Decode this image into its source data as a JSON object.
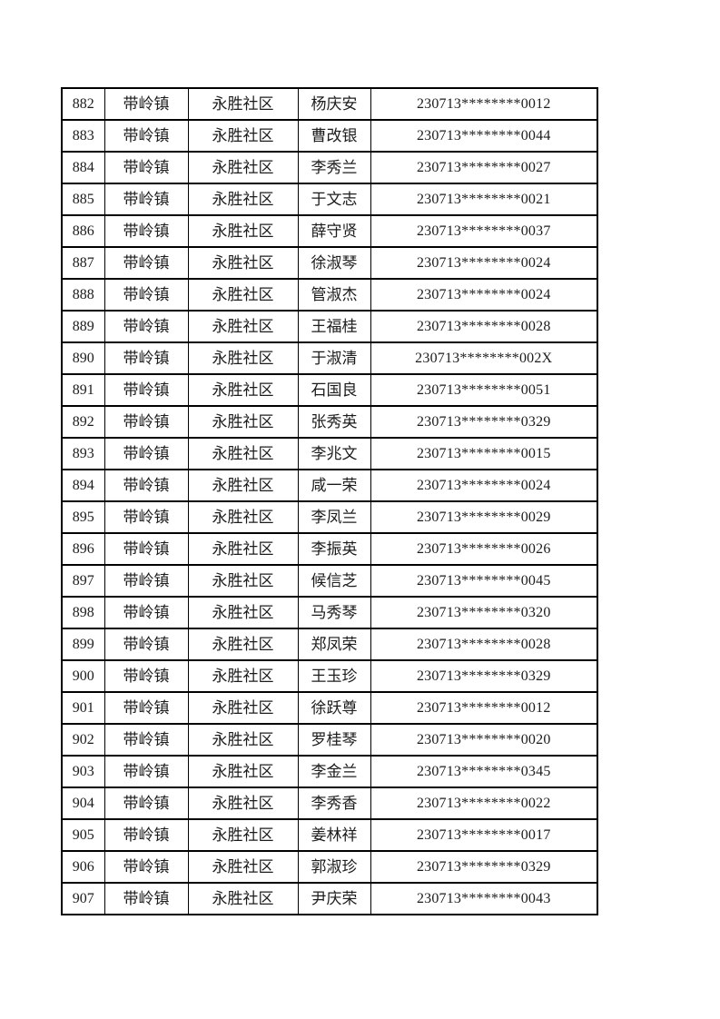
{
  "page": {
    "background_color": "#ffffff",
    "text_color": "#1c1c1c",
    "border_color": "#000000"
  },
  "table": {
    "fields": [
      "no",
      "town",
      "community",
      "name",
      "id_masked"
    ],
    "rows": [
      {
        "no": "882",
        "town": "带岭镇",
        "community": "永胜社区",
        "name": "杨庆安",
        "id_masked": "230713********0012"
      },
      {
        "no": "883",
        "town": "带岭镇",
        "community": "永胜社区",
        "name": "曹改银",
        "id_masked": "230713********0044"
      },
      {
        "no": "884",
        "town": "带岭镇",
        "community": "永胜社区",
        "name": "李秀兰",
        "id_masked": "230713********0027"
      },
      {
        "no": "885",
        "town": "带岭镇",
        "community": "永胜社区",
        "name": "于文志",
        "id_masked": "230713********0021"
      },
      {
        "no": "886",
        "town": "带岭镇",
        "community": "永胜社区",
        "name": "薛守贤",
        "id_masked": "230713********0037"
      },
      {
        "no": "887",
        "town": "带岭镇",
        "community": "永胜社区",
        "name": "徐淑琴",
        "id_masked": "230713********0024"
      },
      {
        "no": "888",
        "town": "带岭镇",
        "community": "永胜社区",
        "name": "管淑杰",
        "id_masked": "230713********0024"
      },
      {
        "no": "889",
        "town": "带岭镇",
        "community": "永胜社区",
        "name": "王福桂",
        "id_masked": "230713********0028"
      },
      {
        "no": "890",
        "town": "带岭镇",
        "community": "永胜社区",
        "name": "于淑清",
        "id_masked": "230713********002X"
      },
      {
        "no": "891",
        "town": "带岭镇",
        "community": "永胜社区",
        "name": "石国良",
        "id_masked": "230713********0051"
      },
      {
        "no": "892",
        "town": "带岭镇",
        "community": "永胜社区",
        "name": "张秀英",
        "id_masked": "230713********0329"
      },
      {
        "no": "893",
        "town": "带岭镇",
        "community": "永胜社区",
        "name": "李兆文",
        "id_masked": "230713********0015"
      },
      {
        "no": "894",
        "town": "带岭镇",
        "community": "永胜社区",
        "name": "咸一荣",
        "id_masked": "230713********0024"
      },
      {
        "no": "895",
        "town": "带岭镇",
        "community": "永胜社区",
        "name": "李凤兰",
        "id_masked": "230713********0029"
      },
      {
        "no": "896",
        "town": "带岭镇",
        "community": "永胜社区",
        "name": "李振英",
        "id_masked": "230713********0026"
      },
      {
        "no": "897",
        "town": "带岭镇",
        "community": "永胜社区",
        "name": "候信芝",
        "id_masked": "230713********0045"
      },
      {
        "no": "898",
        "town": "带岭镇",
        "community": "永胜社区",
        "name": "马秀琴",
        "id_masked": "230713********0320"
      },
      {
        "no": "899",
        "town": "带岭镇",
        "community": "永胜社区",
        "name": "郑凤荣",
        "id_masked": "230713********0028"
      },
      {
        "no": "900",
        "town": "带岭镇",
        "community": "永胜社区",
        "name": "王玉珍",
        "id_masked": "230713********0329"
      },
      {
        "no": "901",
        "town": "带岭镇",
        "community": "永胜社区",
        "name": "徐跃尊",
        "id_masked": "230713********0012"
      },
      {
        "no": "902",
        "town": "带岭镇",
        "community": "永胜社区",
        "name": "罗桂琴",
        "id_masked": "230713********0020"
      },
      {
        "no": "903",
        "town": "带岭镇",
        "community": "永胜社区",
        "name": "李金兰",
        "id_masked": "230713********0345"
      },
      {
        "no": "904",
        "town": "带岭镇",
        "community": "永胜社区",
        "name": "李秀香",
        "id_masked": "230713********0022"
      },
      {
        "no": "905",
        "town": "带岭镇",
        "community": "永胜社区",
        "name": "姜林祥",
        "id_masked": "230713********0017"
      },
      {
        "no": "906",
        "town": "带岭镇",
        "community": "永胜社区",
        "name": "郭淑珍",
        "id_masked": "230713********0329"
      },
      {
        "no": "907",
        "town": "带岭镇",
        "community": "永胜社区",
        "name": "尹庆荣",
        "id_masked": "230713********0043"
      }
    ]
  }
}
